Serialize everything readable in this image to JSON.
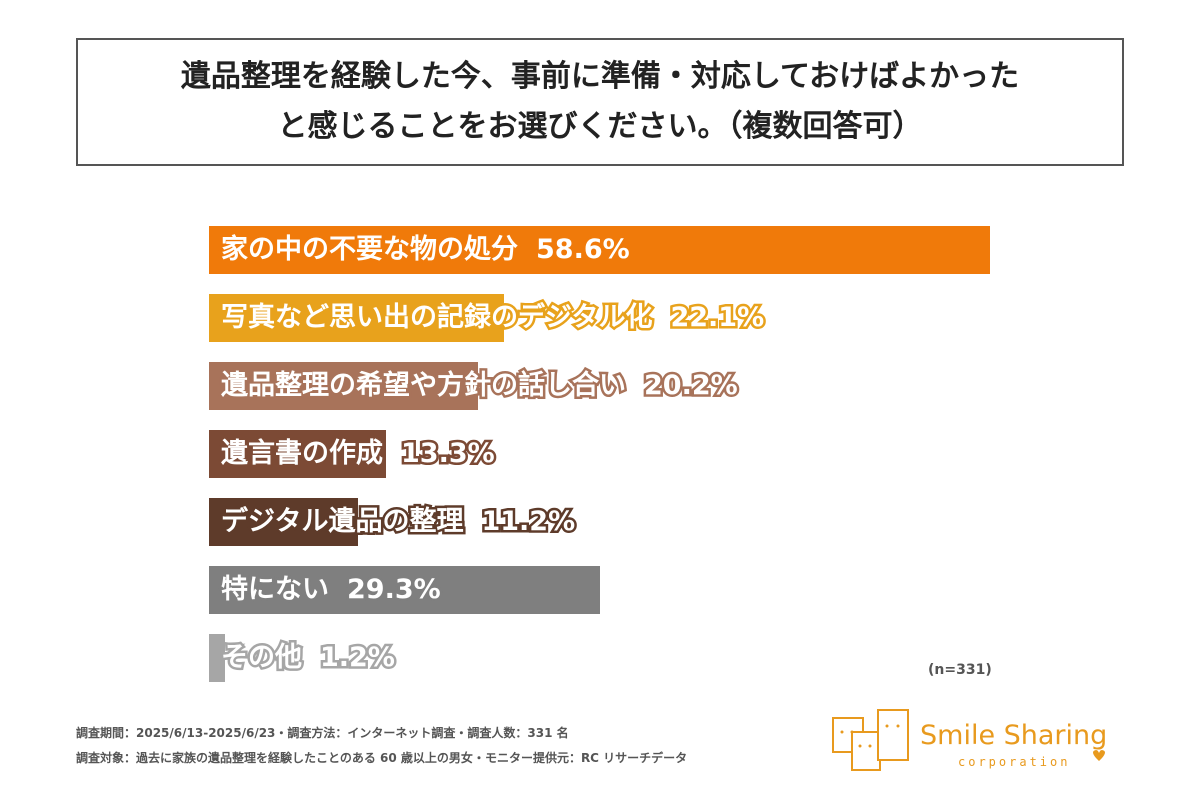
{
  "title_lines": [
    "遺品整理を経験した今、事前に準備・対応しておけばよかった",
    "と感じることをお選びください。（複数回答可）"
  ],
  "chart_data": {
    "type": "bar",
    "orientation": "horizontal",
    "title": "遺品整理を経験した今、事前に準備・対応しておけばよかったと感じることをお選びください。（複数回答可）",
    "categories": [
      "家の中の不要な物の処分",
      "写真など思い出の記録のデジタル化",
      "遺品整理の希望や方針の話し合い",
      "遺言書の作成",
      "デジタル遺品の整理",
      "特にない",
      "その他"
    ],
    "values": [
      58.6,
      22.1,
      20.2,
      13.3,
      11.2,
      29.3,
      1.2
    ],
    "value_labels": [
      "58.6%",
      "22.1%",
      "20.2%",
      "13.3%",
      "11.2%",
      "29.3%",
      "1.2%"
    ],
    "colors": [
      "#F07A0A",
      "#E8A21C",
      "#A8735A",
      "#7C4A35",
      "#5E3B2A",
      "#7F7F7F",
      "#A6A6A6"
    ],
    "unit": "%",
    "xlim": [
      0,
      60
    ],
    "grid": false
  },
  "sample_note": "(n=331)",
  "footer": [
    "調査期間：2025/6/13-2025/6/23・調査方法：インターネット調査・調査人数：331 名",
    "調査対象：過去に家族の遺品整理を経験したことのある 60 歳以上の男女・モニター提供元：RC リサーチデータ"
  ],
  "logo": {
    "name": "Smile Sharing",
    "sub": "Corporation",
    "color": "#E89A1E"
  }
}
